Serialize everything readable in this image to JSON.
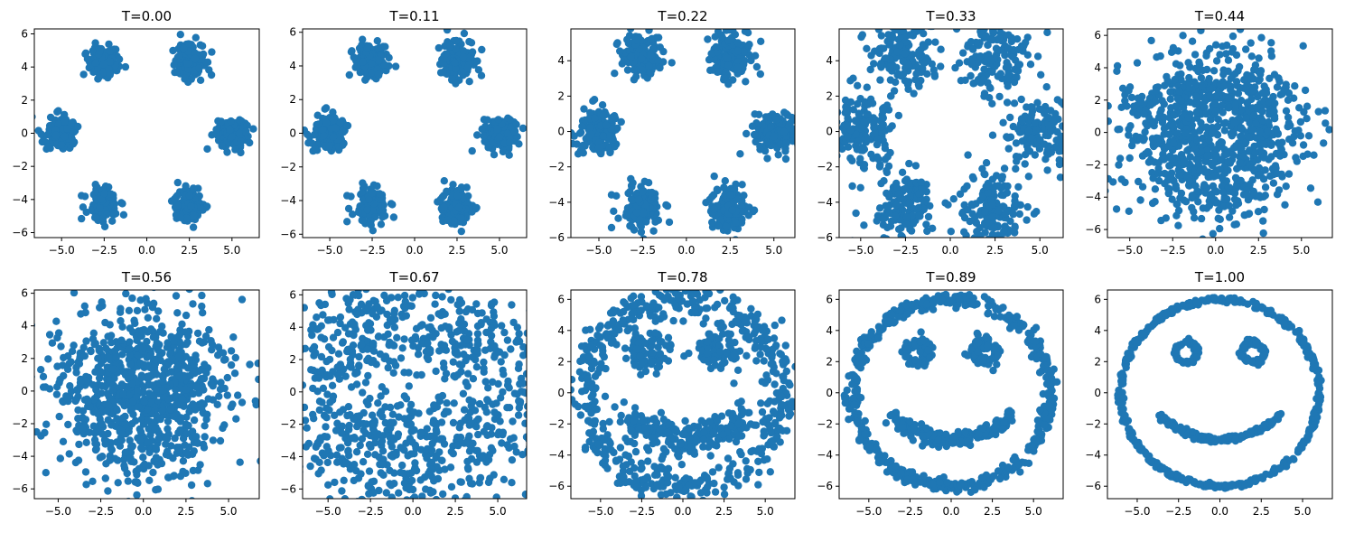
{
  "figure": {
    "subplot_titles": [
      "T=0.00",
      "T=0.11",
      "T=0.22",
      "T=0.33",
      "T=0.44",
      "T=0.56",
      "T=0.67",
      "T=0.78",
      "T=0.89",
      "T=1.00"
    ]
  },
  "chart_data": [
    {
      "type": "scatter",
      "title": "T=0.00",
      "color": "#1f77b4",
      "xlim": [
        -6.6,
        6.6
      ],
      "ylim": [
        -6.3,
        6.3
      ],
      "xticks": [
        -5.0,
        -2.5,
        0.0,
        2.5,
        5.0
      ],
      "xticklabels": [
        "−5.0",
        "−2.5",
        "0.0",
        "2.5",
        "5.0"
      ],
      "yticks": [
        -6,
        -4,
        -2,
        0,
        2,
        4,
        6
      ],
      "yticklabels": [
        "−6",
        "−4",
        "−2",
        "0",
        "2",
        "4",
        "6"
      ],
      "pattern": "six_clusters",
      "spread": 0.45,
      "jitter": 0.0,
      "t": 0.0
    },
    {
      "type": "scatter",
      "title": "T=0.11",
      "color": "#1f77b4",
      "xlim": [
        -6.6,
        6.6
      ],
      "ylim": [
        -6.2,
        6.2
      ],
      "xticks": [
        -5.0,
        -2.5,
        0.0,
        2.5,
        5.0
      ],
      "xticklabels": [
        "−5.0",
        "−2.5",
        "0.0",
        "2.5",
        "5.0"
      ],
      "yticks": [
        -6,
        -4,
        -2,
        0,
        2,
        4,
        6
      ],
      "yticklabels": [
        "−6",
        "−4",
        "−2",
        "0",
        "2",
        "4",
        "6"
      ],
      "pattern": "six_clusters",
      "spread": 0.5,
      "jitter": 0.0,
      "t": 0.11
    },
    {
      "type": "scatter",
      "title": "T=0.22",
      "color": "#1f77b4",
      "xlim": [
        -6.6,
        6.2
      ],
      "ylim": [
        -6.0,
        5.8
      ],
      "xticks": [
        -5.0,
        -2.5,
        0.0,
        2.5,
        5.0
      ],
      "xticklabels": [
        "−5.0",
        "−2.5",
        "0.0",
        "2.5",
        "5.0"
      ],
      "yticks": [
        -6,
        -4,
        -2,
        0,
        2,
        4
      ],
      "yticklabels": [
        "−6",
        "−4",
        "−2",
        "0",
        "2",
        "4"
      ],
      "pattern": "six_clusters",
      "spread": 0.6,
      "jitter": 0.0,
      "t": 0.22
    },
    {
      "type": "scatter",
      "title": "T=0.33",
      "color": "#1f77b4",
      "xlim": [
        -6.2,
        6.3
      ],
      "ylim": [
        -6.0,
        5.8
      ],
      "xticks": [
        -5.0,
        -2.5,
        0.0,
        2.5,
        5.0
      ],
      "xticklabels": [
        "−5.0",
        "−2.5",
        "0.0",
        "2.5",
        "5.0"
      ],
      "yticks": [
        -6,
        -4,
        -2,
        0,
        2,
        4
      ],
      "yticklabels": [
        "−6",
        "−4",
        "−2",
        "0",
        "2",
        "4"
      ],
      "pattern": "six_clusters",
      "spread": 1.0,
      "jitter": 0.0,
      "t": 0.33
    },
    {
      "type": "scatter",
      "title": "T=0.44",
      "color": "#1f77b4",
      "xlim": [
        -6.3,
        6.8
      ],
      "ylim": [
        -6.5,
        6.4
      ],
      "xticks": [
        -5.0,
        -2.5,
        0.0,
        2.5,
        5.0
      ],
      "xticklabels": [
        "−5.0",
        "−2.5",
        "0.0",
        "2.5",
        "5.0"
      ],
      "yticks": [
        -6,
        -4,
        -2,
        0,
        2,
        4,
        6
      ],
      "yticklabels": [
        "−6",
        "−4",
        "−2",
        "0",
        "2",
        "4",
        "6"
      ],
      "pattern": "blend",
      "spread": 1.5,
      "jitter": 0.0,
      "t": 0.44
    },
    {
      "type": "scatter",
      "title": "T=0.56",
      "color": "#1f77b4",
      "xlim": [
        -6.4,
        6.8
      ],
      "ylim": [
        -6.6,
        6.2
      ],
      "xticks": [
        -5.0,
        -2.5,
        0.0,
        2.5,
        5.0
      ],
      "xticklabels": [
        "−5.0",
        "−2.5",
        "0.0",
        "2.5",
        "5.0"
      ],
      "yticks": [
        -6,
        -4,
        -2,
        0,
        2,
        4,
        6
      ],
      "yticklabels": [
        "−6",
        "−4",
        "−2",
        "0",
        "2",
        "4",
        "6"
      ],
      "pattern": "blend",
      "spread": 1.9,
      "jitter": 0.0,
      "t": 0.56
    },
    {
      "type": "scatter",
      "title": "T=0.67",
      "color": "#1f77b4",
      "xlim": [
        -6.5,
        6.7
      ],
      "ylim": [
        -6.6,
        6.3
      ],
      "xticks": [
        -5.0,
        -2.5,
        0.0,
        2.5,
        5.0
      ],
      "xticklabels": [
        "−5.0",
        "−2.5",
        "0.0",
        "2.5",
        "5.0"
      ],
      "yticks": [
        -6,
        -4,
        -2,
        0,
        2,
        4,
        6
      ],
      "yticklabels": [
        "−6",
        "−4",
        "−2",
        "0",
        "2",
        "4",
        "6"
      ],
      "pattern": "smiley",
      "spread": 0.0,
      "jitter": 1.3,
      "t": 0.67
    },
    {
      "type": "scatter",
      "title": "T=0.78",
      "color": "#1f77b4",
      "xlim": [
        -6.8,
        6.8
      ],
      "ylim": [
        -6.8,
        6.6
      ],
      "xticks": [
        -5.0,
        -2.5,
        0.0,
        2.5,
        5.0
      ],
      "xticklabels": [
        "−5.0",
        "−2.5",
        "0.0",
        "2.5",
        "5.0"
      ],
      "yticks": [
        -6,
        -4,
        -2,
        0,
        2,
        4,
        6
      ],
      "yticklabels": [
        "−6",
        "−4",
        "−2",
        "0",
        "2",
        "4",
        "6"
      ],
      "pattern": "smiley",
      "spread": 0.0,
      "jitter": 0.55,
      "t": 0.78
    },
    {
      "type": "scatter",
      "title": "T=0.89",
      "color": "#1f77b4",
      "xlim": [
        -6.8,
        6.8
      ],
      "ylim": [
        -6.8,
        6.6
      ],
      "xticks": [
        -5.0,
        -2.5,
        0.0,
        2.5,
        5.0
      ],
      "xticklabels": [
        "−5.0",
        "−2.5",
        "0.0",
        "2.5",
        "5.0"
      ],
      "yticks": [
        -6,
        -4,
        -2,
        0,
        2,
        4,
        6
      ],
      "yticklabels": [
        "−6",
        "−4",
        "−2",
        "0",
        "2",
        "4",
        "6"
      ],
      "pattern": "smiley",
      "spread": 0.0,
      "jitter": 0.22,
      "t": 0.89
    },
    {
      "type": "scatter",
      "title": "T=1.00",
      "color": "#1f77b4",
      "xlim": [
        -6.8,
        6.8
      ],
      "ylim": [
        -6.8,
        6.6
      ],
      "xticks": [
        -5.0,
        -2.5,
        0.0,
        2.5,
        5.0
      ],
      "xticklabels": [
        "−5.0",
        "−2.5",
        "0.0",
        "2.5",
        "5.0"
      ],
      "yticks": [
        -6,
        -4,
        -2,
        0,
        2,
        4,
        6
      ],
      "yticklabels": [
        "−6",
        "−4",
        "−2",
        "0",
        "2",
        "4",
        "6"
      ],
      "pattern": "smiley",
      "spread": 0.0,
      "jitter": 0.08,
      "t": 1.0
    }
  ]
}
